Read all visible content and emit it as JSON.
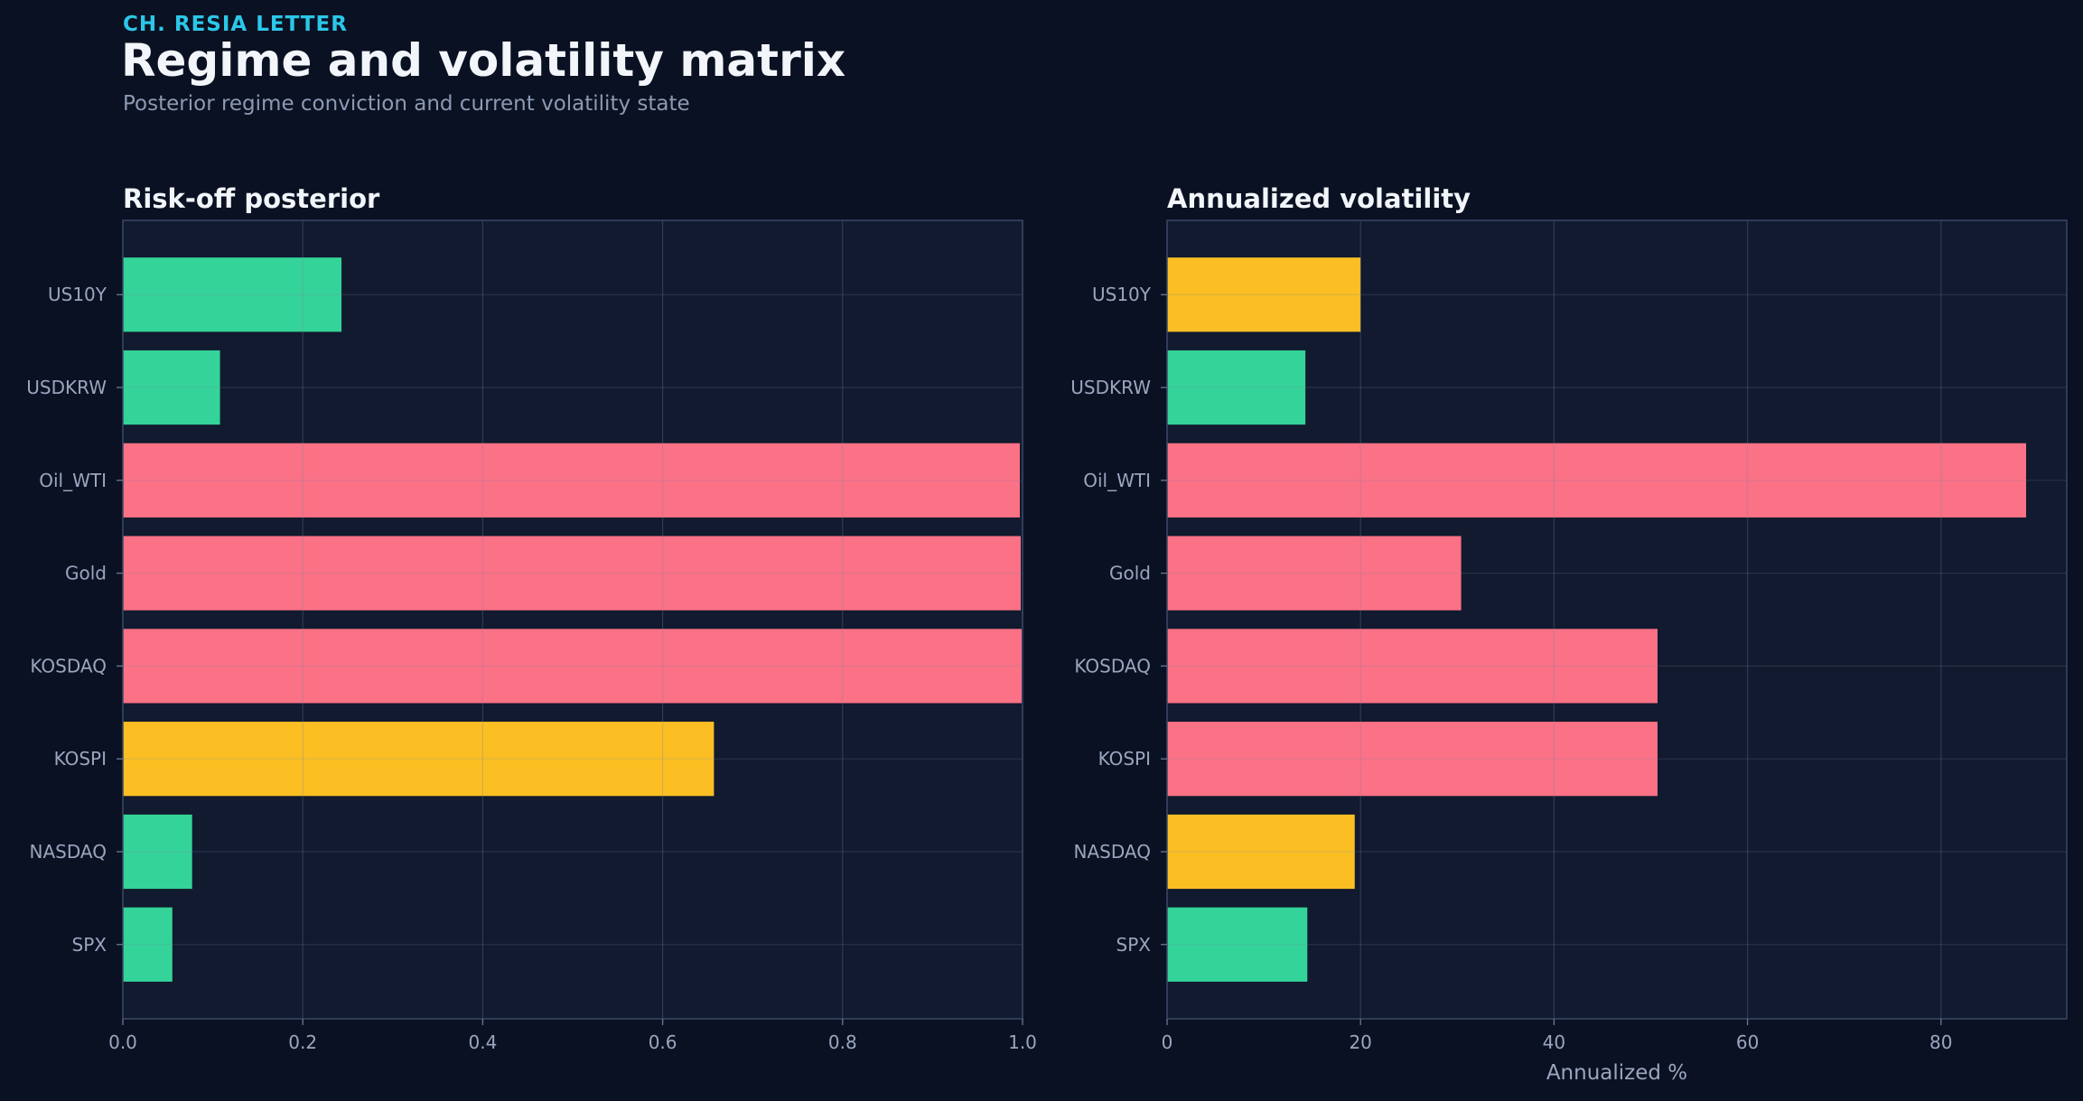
{
  "header": {
    "kicker": "CH. RESIA LETTER",
    "title": "Regime and volatility matrix",
    "subtitle": "Posterior regime conviction and current volatility state"
  },
  "colors": {
    "background": "#0a1122",
    "panel": "#111a2e",
    "green": "#34d399",
    "yellow": "#fbbf24",
    "red": "#fb7185",
    "tick_label": "#9aa6bf"
  },
  "chart_data": [
    {
      "type": "bar",
      "orientation": "horizontal",
      "title": "Risk-off posterior",
      "xlabel": "",
      "ylabel": "",
      "categories": [
        "US10Y",
        "USDKRW",
        "Oil_WTI",
        "Gold",
        "KOSDAQ",
        "KOSPI",
        "NASDAQ",
        "SPX"
      ],
      "values": [
        0.243,
        0.108,
        0.997,
        0.998,
        0.999,
        0.657,
        0.077,
        0.055
      ],
      "colors": [
        "green",
        "green",
        "red",
        "red",
        "red",
        "yellow",
        "green",
        "green"
      ],
      "xlim": [
        0,
        1.0
      ],
      "xticks": [
        0.0,
        0.2,
        0.4,
        0.6,
        0.8,
        1.0
      ],
      "xtick_labels": [
        "0.0",
        "0.2",
        "0.4",
        "0.6",
        "0.8",
        "1.0"
      ],
      "grid": true,
      "legend": "none"
    },
    {
      "type": "bar",
      "orientation": "horizontal",
      "title": "Annualized volatility",
      "xlabel": "Annualized %",
      "ylabel": "",
      "categories": [
        "US10Y",
        "USDKRW",
        "Oil_WTI",
        "Gold",
        "KOSDAQ",
        "KOSPI",
        "NASDAQ",
        "SPX"
      ],
      "values": [
        20.0,
        14.3,
        88.8,
        30.4,
        50.7,
        50.7,
        19.4,
        14.5
      ],
      "colors": [
        "yellow",
        "green",
        "red",
        "red",
        "red",
        "red",
        "yellow",
        "green"
      ],
      "xlim": [
        0,
        93
      ],
      "xticks": [
        0,
        20,
        40,
        60,
        80
      ],
      "xtick_labels": [
        "0",
        "20",
        "40",
        "60",
        "80"
      ],
      "grid": true,
      "legend": "none"
    }
  ]
}
